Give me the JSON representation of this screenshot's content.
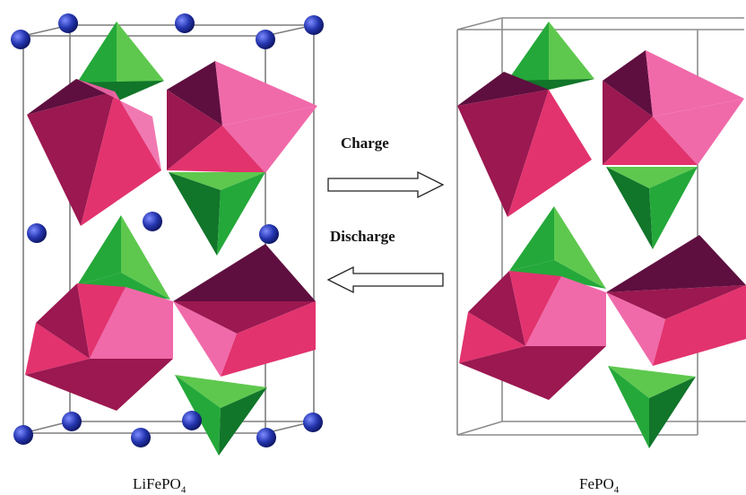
{
  "labels": {
    "charge": "Charge",
    "discharge": "Discharge"
  },
  "left_structure": {
    "formula_base": "LiFePO",
    "formula_subscript": "4"
  },
  "right_structure": {
    "formula_base": "FePO",
    "formula_subscript": "4"
  },
  "colors": {
    "octahedron_light": "#f06aaa",
    "octahedron_mid": "#e2336e",
    "octahedron_dark": "#9b1850",
    "octahedron_darkest": "#5e0f3f",
    "tetrahedron_light": "#5ec84e",
    "tetrahedron_mid": "#24a83a",
    "tetrahedron_dark": "#11752a",
    "lithium_atom": "#2536b0",
    "cell_edge": "#7d7d7d"
  }
}
